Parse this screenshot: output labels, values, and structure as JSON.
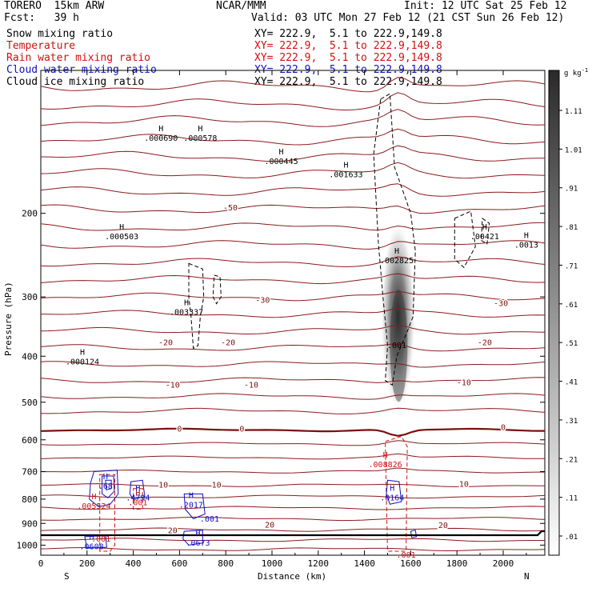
{
  "header": {
    "model": "TORERO  15km ARW",
    "center": "NCAR/MMM",
    "init": "Init: 12 UTC Sat 25 Feb 12",
    "fcst": "Fcst:   39 h",
    "valid": "Valid: 03 UTC Mon 27 Feb 12 (21 CST Sun 26 Feb 12)"
  },
  "legend": [
    {
      "label": "Snow mixing ratio",
      "xy": "XY= 222.9,  5.1 to 222.9,149.8",
      "color": "#000000"
    },
    {
      "label": "Temperature",
      "xy": "XY= 222.9,  5.1 to 222.9,149.8",
      "color": "#d01010"
    },
    {
      "label": "Rain water mixing ratio",
      "xy": "XY= 222.9,  5.1 to 222.9,149.8",
      "color": "#d01010"
    },
    {
      "label": "Cloud water mixing ratio",
      "xy": "XY= 222.9,  5.1 to 222.9,149.8",
      "color": "#1010c0"
    },
    {
      "label": "Cloud ice mixing ratio",
      "xy": "XY= 222.9,  5.1 to 222.9,149.8",
      "color": "#000000"
    }
  ],
  "chart_data": {
    "type": "cross-section contour",
    "xlabel": "Distance (km)",
    "ylabel": "Pressure (hPa)",
    "xlim": [
      0,
      2180
    ],
    "ylim": [
      1050,
      100
    ],
    "y_scale": "log",
    "x_ticks": [
      0,
      200,
      400,
      600,
      800,
      1000,
      1200,
      1400,
      1600,
      1800,
      2000
    ],
    "y_ticks": [
      200,
      300,
      400,
      500,
      600,
      700,
      800,
      900,
      1000
    ],
    "endpoint_labels": {
      "left": "S",
      "right": "N"
    },
    "colorbar": {
      "unit": "g kg",
      "unit_exp": "-1",
      "labels": [
        "1.11",
        "1.01",
        ".91",
        ".81",
        ".71",
        ".61",
        ".51",
        ".41",
        ".31",
        ".21",
        ".11",
        ".01"
      ]
    },
    "temperature_contours_C": [
      -50,
      -40,
      -30,
      -20,
      -10,
      0,
      10,
      20
    ],
    "temperature_labels": [
      {
        "text": "-50",
        "x": 820,
        "p": 195
      },
      {
        "text": "-30",
        "x": 960,
        "p": 305
      },
      {
        "text": "-30",
        "x": 1990,
        "p": 310
      },
      {
        "text": "-20",
        "x": 540,
        "p": 375
      },
      {
        "text": "-20",
        "x": 810,
        "p": 375
      },
      {
        "text": "-20",
        "x": 1920,
        "p": 375
      },
      {
        "text": "-10",
        "x": 570,
        "p": 460
      },
      {
        "text": "-10",
        "x": 910,
        "p": 460
      },
      {
        "text": "-10",
        "x": 1830,
        "p": 455
      },
      {
        "text": "0",
        "x": 600,
        "p": 570
      },
      {
        "text": "0",
        "x": 870,
        "p": 570
      },
      {
        "text": "0",
        "x": 2000,
        "p": 565
      },
      {
        "text": "10",
        "x": 530,
        "p": 748
      },
      {
        "text": "10",
        "x": 760,
        "p": 748
      },
      {
        "text": "10",
        "x": 1830,
        "p": 745
      },
      {
        "text": "20",
        "x": 570,
        "p": 933
      },
      {
        "text": "20",
        "x": 990,
        "p": 908
      },
      {
        "text": "20",
        "x": 1740,
        "p": 910
      }
    ],
    "cloud_ice_maxima": [
      {
        "text": "H",
        "x": 520,
        "p": 136,
        "value": ".000690"
      },
      {
        "text": "H",
        "x": 690,
        "p": 136,
        "value": ".000578"
      },
      {
        "text": "H",
        "x": 1040,
        "p": 152,
        "value": ".000445"
      },
      {
        "text": "H",
        "x": 1320,
        "p": 162,
        "value": ".001633"
      },
      {
        "text": "H",
        "x": 350,
        "p": 219,
        "value": ".000503"
      },
      {
        "text": "H",
        "x": 630,
        "p": 316,
        "value": ".003337"
      },
      {
        "text": "H",
        "x": 180,
        "p": 402,
        "value": ".000124"
      },
      {
        "text": "H",
        "x": 1920,
        "p": 219,
        "value": ".00421"
      },
      {
        "text": "H",
        "x": 2100,
        "p": 228,
        "value": ".0013"
      },
      {
        "text": "H",
        "x": 1540,
        "p": 246,
        "value": ".002825"
      }
    ],
    "snow_maximum": {
      "x": 1540,
      "p": 380,
      "text": ".001"
    },
    "rain_maxima": [
      {
        "text": "H",
        "x": 230,
        "p": 810,
        "value": ".005524"
      },
      {
        "text": "H",
        "x": 1490,
        "p": 662,
        "value": ".008826"
      },
      {
        "text": "H",
        "x": 420,
        "p": 795,
        "value": ".001"
      },
      {
        "text": "",
        "x": 260,
        "p": 950,
        "value": ".001"
      },
      {
        "text": "",
        "x": 1580,
        "p": 1025,
        "value": ".001"
      }
    ],
    "cloud_water_maxima": [
      {
        "text": "H",
        "x": 280,
        "p": 735,
        "value": ".68"
      },
      {
        "text": "H",
        "x": 420,
        "p": 778,
        "value": ".4794"
      },
      {
        "text": "H",
        "x": 650,
        "p": 805,
        "value": ".2017"
      },
      {
        "text": "",
        "x": 730,
        "p": 862,
        "value": ".001"
      },
      {
        "text": "H",
        "x": 1520,
        "p": 778,
        "value": ".0164"
      },
      {
        "text": "H",
        "x": 680,
        "p": 967,
        "value": ".0673"
      },
      {
        "text": "H",
        "x": 220,
        "p": 985,
        "value": ".0608"
      }
    ]
  }
}
